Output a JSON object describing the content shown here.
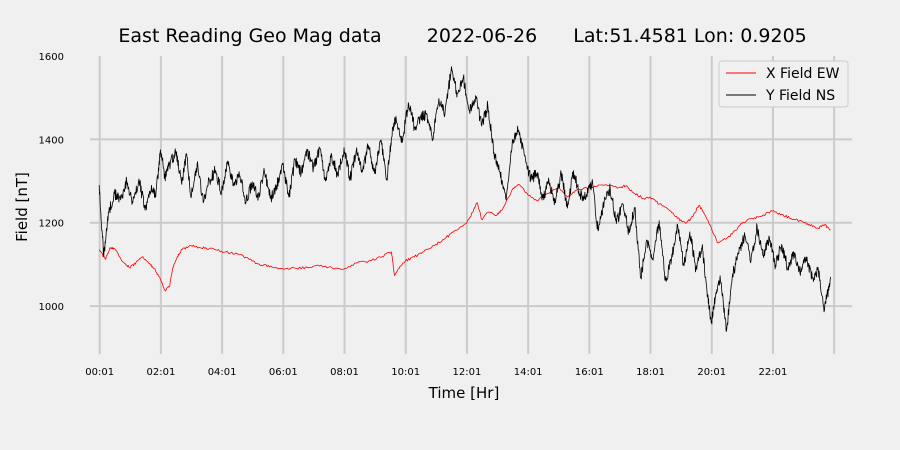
{
  "chart_data": {
    "type": "line",
    "title": {
      "name": "East Reading Geo Mag data",
      "date": "2022-06-26",
      "location": "Lat:51.4581  Lon: 0.9205"
    },
    "xlabel": "Time  [Hr]",
    "ylabel": "Field  [nT]",
    "xlim": [
      -0.3,
      24.6
    ],
    "ylim": [
      885,
      1600
    ],
    "xticks": [
      {
        "value": 0.017,
        "label": "00:01"
      },
      {
        "value": 2.017,
        "label": "02:01"
      },
      {
        "value": 4.017,
        "label": "04:01"
      },
      {
        "value": 6.017,
        "label": "06:01"
      },
      {
        "value": 8.017,
        "label": "08:01"
      },
      {
        "value": 10.017,
        "label": "10:01"
      },
      {
        "value": 12.017,
        "label": "12:01"
      },
      {
        "value": 14.017,
        "label": "14:01"
      },
      {
        "value": 16.017,
        "label": "16:01"
      },
      {
        "value": 18.017,
        "label": "18:01"
      },
      {
        "value": 20.017,
        "label": "20:01"
      },
      {
        "value": 22.017,
        "label": "22:01"
      }
    ],
    "extra_vgrid": [
      24.017
    ],
    "yticks": [
      1000,
      1200,
      1400,
      1600
    ],
    "grid": true,
    "legend_position": "top-right",
    "series": [
      {
        "name": "X Field EW",
        "color": "#ff0000",
        "x": [
          0.0,
          0.2,
          0.35,
          0.5,
          0.8,
          1.0,
          1.2,
          1.4,
          1.6,
          1.8,
          2.0,
          2.15,
          2.3,
          2.4,
          2.55,
          2.7,
          3.0,
          3.3,
          3.6,
          4.0,
          4.3,
          4.6,
          5.0,
          5.3,
          5.6,
          6.0,
          6.4,
          6.8,
          7.2,
          7.6,
          8.0,
          8.4,
          8.8,
          9.2,
          9.55,
          9.65,
          9.8,
          10.0,
          10.3,
          10.6,
          11.0,
          11.3,
          11.6,
          12.0,
          12.2,
          12.35,
          12.5,
          12.7,
          13.0,
          13.2,
          13.5,
          13.7,
          14.0,
          14.3,
          14.6,
          15.0,
          15.3,
          15.6,
          16.0,
          16.5,
          17.0,
          17.2,
          17.5,
          17.8,
          18.0,
          18.3,
          18.6,
          18.9,
          19.2,
          19.4,
          19.6,
          19.8,
          20.0,
          20.2,
          20.5,
          20.8,
          21.0,
          21.3,
          21.6,
          22.0,
          22.3,
          22.6,
          23.0,
          23.2,
          23.5,
          23.7,
          23.9
        ],
        "y": [
          1135,
          1112,
          1140,
          1138,
          1105,
          1092,
          1104,
          1118,
          1105,
          1090,
          1065,
          1037,
          1048,
          1090,
          1118,
          1135,
          1145,
          1140,
          1138,
          1132,
          1128,
          1124,
          1108,
          1098,
          1096,
          1090,
          1091,
          1093,
          1096,
          1092,
          1089,
          1103,
          1108,
          1117,
          1130,
          1073,
          1090,
          1108,
          1118,
          1130,
          1148,
          1162,
          1180,
          1198,
          1225,
          1248,
          1208,
          1225,
          1218,
          1235,
          1280,
          1292,
          1268,
          1253,
          1268,
          1285,
          1262,
          1278,
          1285,
          1290,
          1285,
          1288,
          1270,
          1258,
          1262,
          1245,
          1232,
          1210,
          1200,
          1215,
          1242,
          1218,
          1188,
          1152,
          1162,
          1182,
          1198,
          1210,
          1215,
          1228,
          1220,
          1210,
          1202,
          1196,
          1187,
          1195,
          1183
        ]
      },
      {
        "name": "Y Field NS",
        "color": "#000000",
        "x": [
          0.0,
          0.15,
          0.3,
          0.5,
          0.7,
          0.9,
          1.1,
          1.3,
          1.5,
          1.7,
          1.85,
          2.0,
          2.15,
          2.3,
          2.5,
          2.7,
          2.85,
          3.0,
          3.2,
          3.4,
          3.6,
          3.8,
          4.0,
          4.2,
          4.4,
          4.6,
          4.8,
          5.0,
          5.2,
          5.4,
          5.6,
          5.8,
          6.0,
          6.2,
          6.4,
          6.6,
          6.8,
          7.0,
          7.2,
          7.4,
          7.6,
          7.8,
          8.0,
          8.2,
          8.4,
          8.6,
          8.8,
          9.0,
          9.2,
          9.4,
          9.55,
          9.7,
          9.9,
          10.1,
          10.3,
          10.5,
          10.7,
          10.9,
          11.1,
          11.3,
          11.5,
          11.7,
          11.9,
          12.1,
          12.3,
          12.5,
          12.7,
          12.9,
          13.1,
          13.3,
          13.5,
          13.7,
          13.9,
          14.1,
          14.3,
          14.5,
          14.7,
          14.9,
          15.1,
          15.3,
          15.5,
          15.7,
          15.9,
          16.1,
          16.3,
          16.5,
          16.7,
          16.9,
          17.1,
          17.3,
          17.5,
          17.7,
          17.9,
          18.1,
          18.3,
          18.5,
          18.7,
          18.9,
          19.1,
          19.3,
          19.5,
          19.7,
          19.85,
          20.0,
          20.15,
          20.3,
          20.5,
          20.7,
          20.9,
          21.1,
          21.3,
          21.5,
          21.7,
          21.9,
          22.1,
          22.3,
          22.5,
          22.7,
          22.9,
          23.1,
          23.3,
          23.5,
          23.7,
          23.9
        ],
        "y": [
          1290,
          1120,
          1225,
          1270,
          1255,
          1300,
          1248,
          1305,
          1230,
          1280,
          1262,
          1375,
          1310,
          1340,
          1368,
          1292,
          1365,
          1260,
          1340,
          1248,
          1302,
          1325,
          1275,
          1348,
          1290,
          1312,
          1250,
          1298,
          1262,
          1322,
          1258,
          1290,
          1340,
          1262,
          1352,
          1318,
          1372,
          1330,
          1378,
          1300,
          1360,
          1312,
          1380,
          1305,
          1372,
          1322,
          1385,
          1318,
          1398,
          1305,
          1402,
          1455,
          1392,
          1488,
          1430,
          1452,
          1462,
          1400,
          1498,
          1462,
          1565,
          1510,
          1548,
          1468,
          1505,
          1432,
          1482,
          1368,
          1320,
          1255,
          1395,
          1422,
          1360,
          1305,
          1318,
          1260,
          1298,
          1248,
          1318,
          1235,
          1325,
          1268,
          1258,
          1298,
          1182,
          1248,
          1282,
          1198,
          1245,
          1180,
          1235,
          1068,
          1158,
          1110,
          1205,
          1062,
          1110,
          1195,
          1098,
          1178,
          1090,
          1140,
          1048,
          960,
          1030,
          1062,
          940,
          1078,
          1125,
          1168,
          1108,
          1192,
          1120,
          1165,
          1098,
          1148,
          1090,
          1125,
          1078,
          1118,
          1068,
          1088,
          990,
          1070
        ]
      }
    ]
  }
}
